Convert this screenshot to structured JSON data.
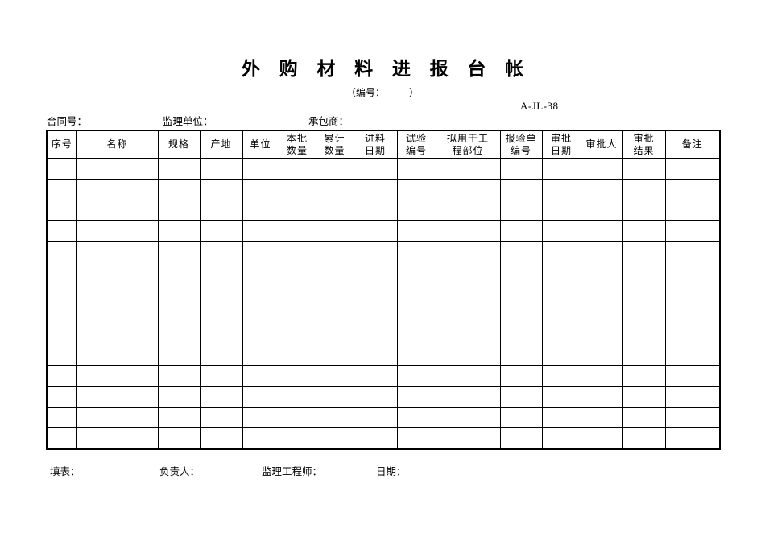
{
  "page": {
    "title": "外 购 材 料 进 报 台 帐",
    "numbering_label": "（编号：　　　）",
    "form_code": "A-JL-38"
  },
  "info_bar": {
    "contract_no_label": "合同号：",
    "supervision_unit_label": "监理单位：",
    "contractor_label": "承包商："
  },
  "table": {
    "headers": [
      "序号",
      "名称",
      "规格",
      "产地",
      "单位",
      "本批\n数量",
      "累计\n数量",
      "进料\n日期",
      "试验\n编号",
      "拟用于工\n程部位",
      "报验单\n编号",
      "审批\n日期",
      "审批人",
      "审批\n结果",
      "备注"
    ],
    "column_count": 15,
    "empty_row_count": 14
  },
  "footer": {
    "fill_label": "填表：",
    "responsible_label": "负责人：",
    "supervising_engineer_label": "监理工程师：",
    "date_label": "日期："
  }
}
